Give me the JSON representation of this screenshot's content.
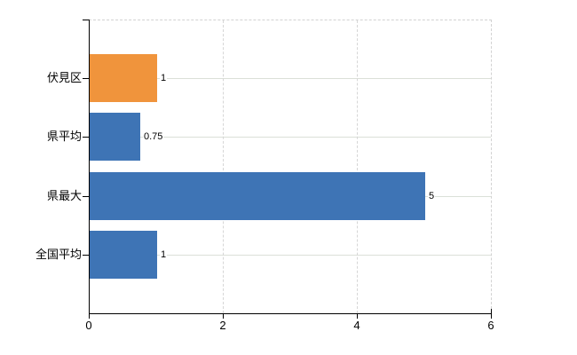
{
  "chart_data": {
    "type": "bar",
    "orientation": "horizontal",
    "title": "",
    "xlabel": "",
    "ylabel": "",
    "categories": [
      "伏見区",
      "県平均",
      "県最大",
      "全国平均"
    ],
    "values": [
      1,
      0.75,
      5,
      1
    ],
    "value_labels": [
      "1",
      "0.75",
      "5",
      "1"
    ],
    "bar_colors": [
      "#f0943c",
      "#3e74b5",
      "#3e74b5",
      "#3e74b5"
    ],
    "default_bar_color": "#3e74b5",
    "highlight_bar_color": "#f0943c",
    "x_ticks": [
      "0",
      "2",
      "4",
      "6"
    ],
    "xlim": [
      0,
      6
    ],
    "grid": "on",
    "legend": "none",
    "axis_color": "#000000",
    "gridline_solid_color": "#dbe0d8",
    "gridline_dashed_color": "#d6d6d6",
    "plot_border_dashed_color": "#d2d2d2"
  }
}
